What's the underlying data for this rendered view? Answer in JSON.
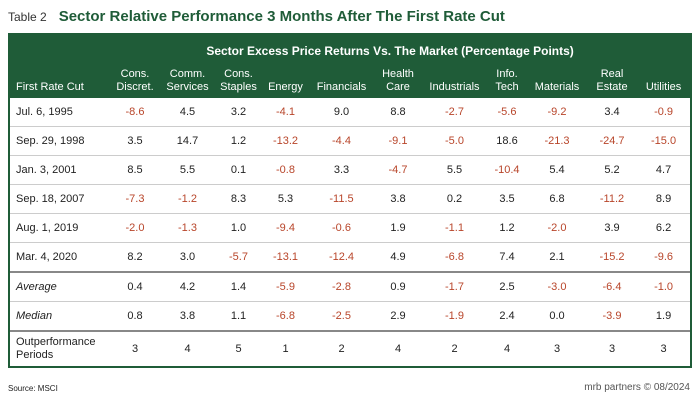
{
  "header": {
    "label": "Table 2",
    "title": "Sector Relative Performance 3 Months After The First Rate Cut"
  },
  "table": {
    "banner": "Sector Excess Price Returns Vs. The Market (Percentage Points)",
    "columns": [
      "First Rate Cut",
      "Cons. Discret.",
      "Comm. Services",
      "Cons. Staples",
      "Energy",
      "Financials",
      "Health Care",
      "Industrials",
      "Info. Tech",
      "Materials",
      "Real Estate",
      "Utilities"
    ],
    "rows": [
      [
        "Jul. 6, 1995",
        "-8.6",
        "4.5",
        "3.2",
        "-4.1",
        "9.0",
        "8.8",
        "-2.7",
        "-5.6",
        "-9.2",
        "3.4",
        "-0.9"
      ],
      [
        "Sep. 29, 1998",
        "3.5",
        "14.7",
        "1.2",
        "-13.2",
        "-4.4",
        "-9.1",
        "-5.0",
        "18.6",
        "-21.3",
        "-24.7",
        "-15.0"
      ],
      [
        "Jan. 3, 2001",
        "8.5",
        "5.5",
        "0.1",
        "-0.8",
        "3.3",
        "-4.7",
        "5.5",
        "-10.4",
        "5.4",
        "5.2",
        "4.7"
      ],
      [
        "Sep. 18, 2007",
        "-7.3",
        "-1.2",
        "8.3",
        "5.3",
        "-11.5",
        "3.8",
        "0.2",
        "3.5",
        "6.8",
        "-11.2",
        "8.9"
      ],
      [
        "Aug. 1, 2019",
        "-2.0",
        "-1.3",
        "1.0",
        "-9.4",
        "-0.6",
        "1.9",
        "-1.1",
        "1.2",
        "-2.0",
        "3.9",
        "6.2"
      ],
      [
        "Mar. 4, 2020",
        "8.2",
        "3.0",
        "-5.7",
        "-13.1",
        "-12.4",
        "4.9",
        "-6.8",
        "7.4",
        "2.1",
        "-15.2",
        "-9.6"
      ]
    ],
    "summary": [
      [
        "Average",
        "0.4",
        "4.2",
        "1.4",
        "-5.9",
        "-2.8",
        "0.9",
        "-1.7",
        "2.5",
        "-3.0",
        "-6.4",
        "-1.0"
      ],
      [
        "Median",
        "0.8",
        "3.8",
        "1.1",
        "-6.8",
        "-2.5",
        "2.9",
        "-1.9",
        "2.4",
        "0.0",
        "-3.9",
        "1.9"
      ]
    ],
    "outperformance": [
      "Outperformance Periods",
      "3",
      "4",
      "5",
      "1",
      "2",
      "4",
      "2",
      "4",
      "3",
      "3",
      "3"
    ]
  },
  "footer": {
    "source": "Source: MSCI",
    "brand": "mrb partners © 08/2024"
  }
}
